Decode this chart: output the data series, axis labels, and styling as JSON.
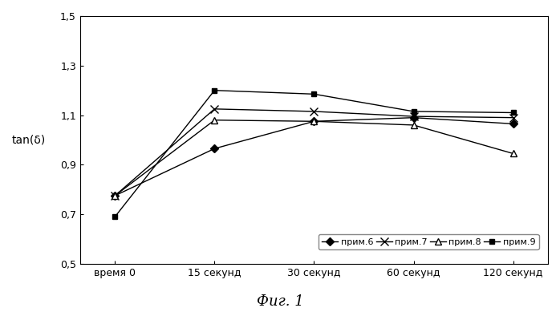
{
  "x_labels": [
    "время 0",
    "15 секунд",
    "30 секунд",
    "60 секунд",
    "120 секунд"
  ],
  "x_positions": [
    0,
    1,
    2,
    3,
    4
  ],
  "series": [
    {
      "label": "прим.6",
      "values": [
        0.775,
        0.965,
        1.075,
        1.09,
        1.065
      ],
      "marker": "D",
      "markersize": 5,
      "color": "#000000",
      "markerfacecolor": "#000000",
      "linestyle": "-"
    },
    {
      "label": "прим.7",
      "values": [
        0.775,
        1.125,
        1.115,
        1.095,
        1.09
      ],
      "marker": "x",
      "markersize": 7,
      "color": "#000000",
      "markerfacecolor": "#000000",
      "linestyle": "-"
    },
    {
      "label": "прим.8",
      "values": [
        0.775,
        1.08,
        1.075,
        1.06,
        0.945
      ],
      "marker": "^",
      "markersize": 6,
      "color": "#000000",
      "markerfacecolor": "#ffffff",
      "linestyle": "-"
    },
    {
      "label": "прим.9",
      "values": [
        0.69,
        1.2,
        1.185,
        1.115,
        1.11
      ],
      "marker": "s",
      "markersize": 5,
      "color": "#000000",
      "markerfacecolor": "#000000",
      "linestyle": "-"
    }
  ],
  "ylabel": "tan(δ)",
  "ylim": [
    0.5,
    1.5
  ],
  "yticks": [
    0.5,
    0.7,
    0.9,
    1.1,
    1.3,
    1.5
  ],
  "ytick_labels": [
    "0,5",
    "0,7",
    "0,9",
    "1,1",
    "1,3",
    "1,5"
  ],
  "figcaption": "Фиг. 1",
  "background_color": "#ffffff"
}
